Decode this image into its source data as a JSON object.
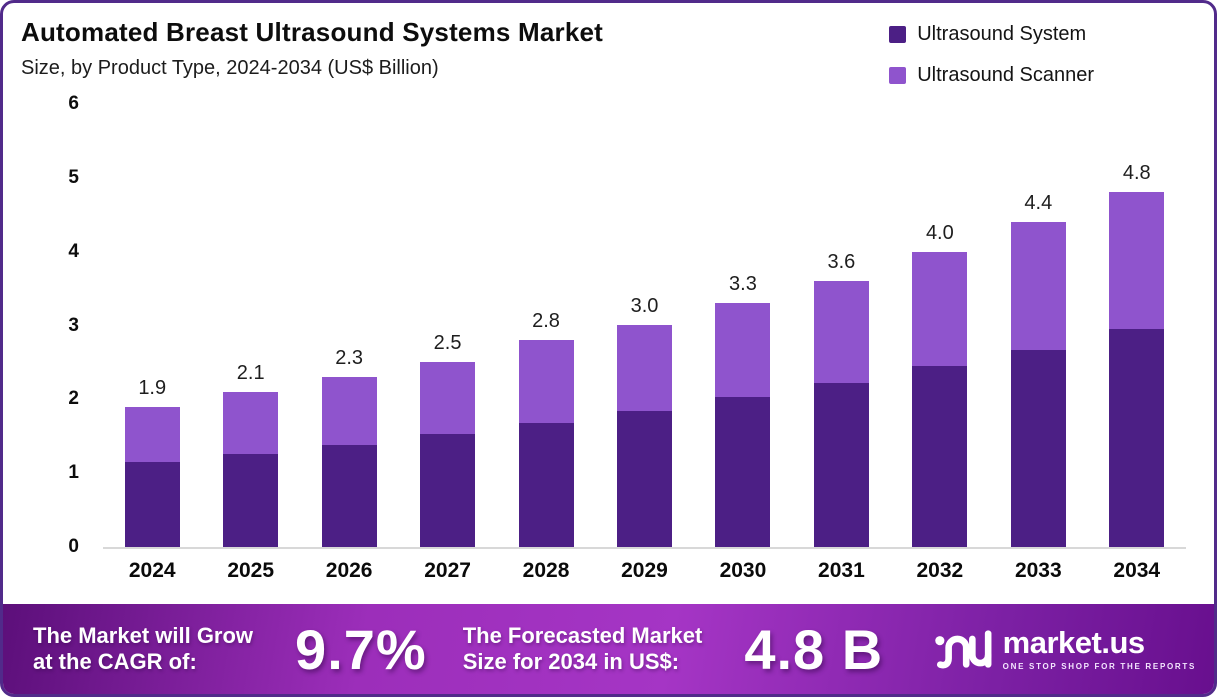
{
  "header": {
    "title": "Automated Breast Ultrasound Systems Market",
    "subtitle": "Size, by Product Type, 2024-2034 (US$ Billion)"
  },
  "legend": [
    {
      "label": "Ultrasound System",
      "color": "#4C1F85"
    },
    {
      "label": "Ultrasound Scanner",
      "color": "#8F54CD"
    }
  ],
  "chart_data": {
    "type": "bar",
    "stacked": true,
    "title": "Automated Breast Ultrasound Systems Market",
    "subtitle": "Size, by Product Type, 2024-2034 (US$ Billion)",
    "unit": "US$ Billion",
    "categories": [
      "2024",
      "2025",
      "2026",
      "2027",
      "2028",
      "2029",
      "2030",
      "2031",
      "2032",
      "2033",
      "2034"
    ],
    "series": [
      {
        "name": "Ultrasound System",
        "color": "#4C1F85",
        "values": [
          1.15,
          1.26,
          1.38,
          1.53,
          1.68,
          1.84,
          2.03,
          2.22,
          2.45,
          2.67,
          2.95
        ]
      },
      {
        "name": "Ultrasound Scanner",
        "color": "#8F54CD",
        "values": [
          0.75,
          0.84,
          0.92,
          0.97,
          1.12,
          1.16,
          1.27,
          1.38,
          1.55,
          1.73,
          1.85
        ]
      }
    ],
    "totals": [
      1.9,
      2.1,
      2.3,
      2.5,
      2.8,
      3.0,
      3.3,
      3.6,
      4.0,
      4.4,
      4.8
    ],
    "total_labels": [
      "1.9",
      "2.1",
      "2.3",
      "2.5",
      "2.8",
      "3.0",
      "3.3",
      "3.6",
      "4.0",
      "4.4",
      "4.8"
    ],
    "ylim": [
      0,
      6
    ],
    "ytick_labels": [
      "0",
      "1",
      "2",
      "3",
      "4",
      "5",
      "6"
    ],
    "grid": false,
    "legend_position": "top-right"
  },
  "footer": {
    "cagr_text_line1": "The Market will Grow",
    "cagr_text_line2": "at the CAGR of:",
    "cagr_value": "9.7%",
    "forecast_text_line1": "The Forecasted Market",
    "forecast_text_line2": "Size for 2034 in US$:",
    "forecast_value": "4.8 B",
    "brand": {
      "name": "market.us",
      "tagline": "ONE STOP SHOP FOR THE REPORTS"
    }
  },
  "colors": {
    "page_border": "#512a8a",
    "bar_dark": "#4C1F85",
    "bar_light": "#8F54CD",
    "axis_line": "#d8d8d8",
    "footer_gradient_start": "#5c0f7a",
    "footer_gradient_mid": "#a535c5",
    "footer_gradient_end": "#680f8e"
  }
}
